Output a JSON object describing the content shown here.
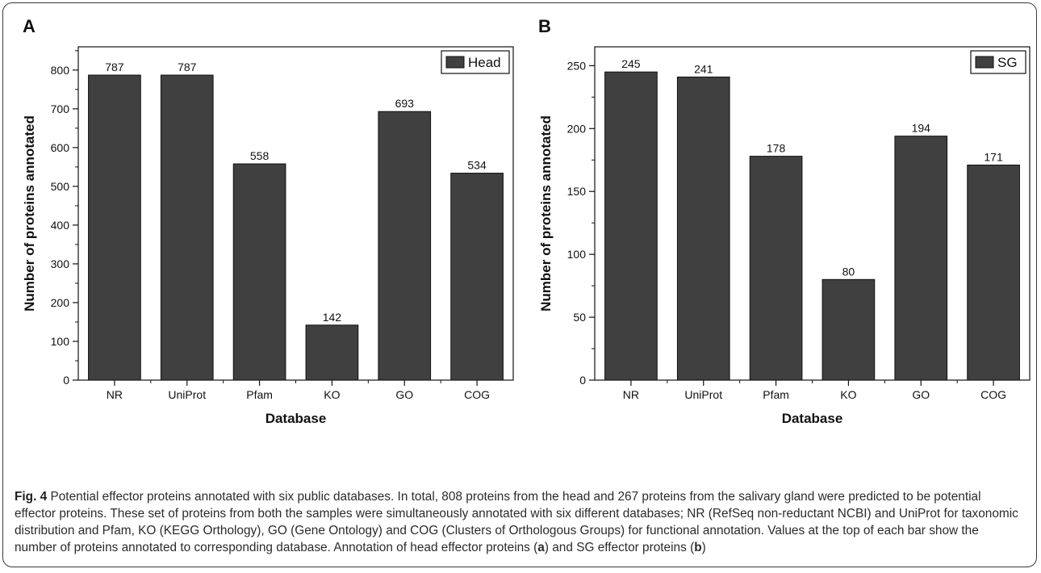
{
  "chart_data": [
    {
      "type": "bar",
      "panel_label": "A",
      "categories": [
        "NR",
        "UniProt",
        "Pfam",
        "KO",
        "GO",
        "COG"
      ],
      "values": [
        787,
        787,
        558,
        142,
        693,
        534
      ],
      "data_labels": [
        "787",
        "787",
        "558",
        "142",
        "693",
        "534"
      ],
      "xlabel": "Database",
      "ylabel": "Number of proteins annotated",
      "ylim": [
        0,
        860
      ],
      "yticks": [
        0,
        100,
        200,
        300,
        400,
        500,
        600,
        700,
        800
      ],
      "yminor_step": 50,
      "legend": {
        "label": "Head",
        "position": "top-right"
      },
      "grid": false,
      "bar_color": "#404040"
    },
    {
      "type": "bar",
      "panel_label": "B",
      "categories": [
        "NR",
        "UniProt",
        "Pfam",
        "KO",
        "GO",
        "COG"
      ],
      "values": [
        245,
        241,
        178,
        80,
        194,
        171
      ],
      "data_labels": [
        "245",
        "241",
        "178",
        "80",
        "194",
        "171"
      ],
      "xlabel": "Database",
      "ylabel": "Number of proteins annotated",
      "ylim": [
        0,
        265
      ],
      "yticks": [
        0,
        50,
        100,
        150,
        200,
        250
      ],
      "yminor_step": 25,
      "legend": {
        "label": "SG",
        "position": "top-right"
      },
      "grid": false,
      "bar_color": "#404040"
    }
  ],
  "caption": {
    "fig_label": "Fig. 4",
    "text_1": " Potential effector proteins annotated with six public databases. In total, 808 proteins from the head and 267 proteins from the salivary gland were predicted to be potential effector proteins. These set of proteins from both the samples were simultaneously annotated with six different databases; NR (RefSeq non-reductant NCBI) and UniProt for taxonomic distribution and Pfam, KO (KEGG Orthology), GO (Gene Ontology) and COG (Clusters of Orthologous Groups) for functional annotation. Values at the top of each bar show the number of proteins annotated to corresponding database. Annotation of head effector proteins (",
    "panel_a": "a",
    "text_2": ") and SG effector proteins (",
    "panel_b": "b",
    "text_3": ")"
  }
}
